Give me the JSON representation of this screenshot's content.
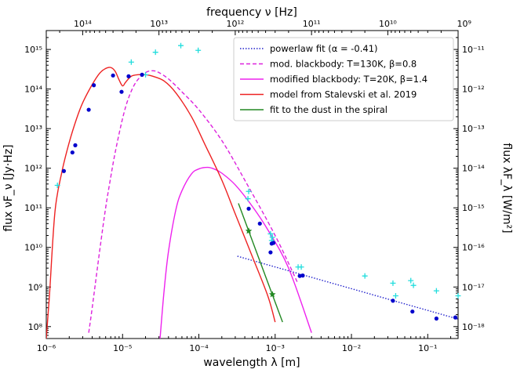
{
  "chart_data": {
    "type": "line",
    "title": "",
    "x_scale": "log",
    "y_scale": "log",
    "xlim": [
      1e-06,
      0.25
    ],
    "ylim": [
      50000000.0,
      3000000000000000.0
    ],
    "grid": false,
    "legend_position": "top-right",
    "bottom_axis": {
      "label": "wavelength λ [m]",
      "ticks": [
        {
          "value": 1e-06,
          "label": "10⁻⁶"
        },
        {
          "value": 1e-05,
          "label": "10⁻⁵"
        },
        {
          "value": 0.0001,
          "label": "10⁻⁴"
        },
        {
          "value": 0.001,
          "label": "10⁻³"
        },
        {
          "value": 0.01,
          "label": "10⁻²"
        },
        {
          "value": 0.1,
          "label": "10⁻¹"
        }
      ]
    },
    "top_axis": {
      "label": "frequency ν [Hz]",
      "ticks": [
        {
          "value": 100000000000000.0,
          "label": "10¹⁴"
        },
        {
          "value": 10000000000000.0,
          "label": "10¹³"
        },
        {
          "value": 1000000000000.0,
          "label": "10¹²"
        },
        {
          "value": 100000000000.0,
          "label": "10¹¹"
        },
        {
          "value": 10000000000.0,
          "label": "10¹⁰"
        },
        {
          "value": 1000000000.0,
          "label": "10⁹"
        }
      ]
    },
    "left_axis": {
      "label": "flux νF_ν [Jy·Hz]",
      "ticks": [
        {
          "value": 100000000.0,
          "label": "10⁸"
        },
        {
          "value": 1000000000.0,
          "label": "10⁹"
        },
        {
          "value": 10000000000.0,
          "label": "10¹⁰"
        },
        {
          "value": 100000000000.0,
          "label": "10¹¹"
        },
        {
          "value": 1000000000000.0,
          "label": "10¹²"
        },
        {
          "value": 10000000000000.0,
          "label": "10¹³"
        },
        {
          "value": 100000000000000.0,
          "label": "10¹⁴"
        },
        {
          "value": 1000000000000000.0,
          "label": "10¹⁵"
        }
      ]
    },
    "right_axis": {
      "label": "flux λF_λ [W/m²]",
      "ticks": [
        {
          "value": 1e-18,
          "label": "10⁻¹⁸"
        },
        {
          "value": 1e-17,
          "label": "10⁻¹⁷"
        },
        {
          "value": 1e-16,
          "label": "10⁻¹⁶"
        },
        {
          "value": 1e-15,
          "label": "10⁻¹⁵"
        },
        {
          "value": 1e-14,
          "label": "10⁻¹⁴"
        },
        {
          "value": 1e-13,
          "label": "10⁻¹³"
        },
        {
          "value": 1e-12,
          "label": "10⁻¹²"
        },
        {
          "value": 1e-11,
          "label": "10⁻¹¹"
        }
      ]
    },
    "series": [
      {
        "name": "powerlaw fit (α = -0.41)",
        "style": "dotted",
        "color": "#2222cc",
        "x": [
          0.00032,
          0.25
        ],
        "y": [
          6000000000.0,
          155000000.0
        ]
      },
      {
        "name": "mod. blackbody: T=130K, β=0.8",
        "style": "dashed",
        "color": "#dd22dd",
        "x": [
          3.6e-06,
          4e-06,
          5e-06,
          6e-06,
          7e-06,
          8e-06,
          1e-05,
          1.2e-05,
          1.5e-05,
          2e-05,
          2.5e-05,
          3e-05,
          4e-05,
          6e-05,
          0.0001,
          0.0002,
          0.0004,
          0.001,
          0.002
        ],
        "y": [
          70000000.0,
          300000000.0,
          8000000000.0,
          100000000000.0,
          600000000000.0,
          2500000000000.0,
          18000000000000.0,
          60000000000000.0,
          150000000000000.0,
          260000000000000.0,
          290000000000000.0,
          260000000000000.0,
          180000000000000.0,
          85000000000000.0,
          30000000000000.0,
          5000000000000.0,
          500000000000.0,
          20000000000.0,
          1200000000.0
        ]
      },
      {
        "name": "modified blackbody: T=20K, β=1.4",
        "style": "solid",
        "color": "#ee22ee",
        "x": [
          3.1e-05,
          3.5e-05,
          4e-05,
          5e-05,
          6e-05,
          8e-05,
          0.0001,
          0.00013,
          0.00016,
          0.0002,
          0.0003,
          0.0005,
          0.0008,
          0.0015,
          0.003
        ],
        "y": [
          50000000.0,
          800000000.0,
          8000000000.0,
          90000000000.0,
          270000000000.0,
          720000000000.0,
          960000000000.0,
          1050000000000.0,
          950000000000.0,
          750000000000.0,
          380000000000.0,
          110000000000.0,
          28000000000.0,
          3000000000.0,
          70000000.0
        ]
      },
      {
        "name": "model from Stalevski et al. 2019",
        "style": "solid",
        "color": "#ee2222",
        "x": [
          1e-06,
          1.1e-06,
          1.3e-06,
          1.6e-06,
          2e-06,
          2.5e-06,
          3e-06,
          4e-06,
          5e-06,
          6e-06,
          7e-06,
          8e-06,
          9e-06,
          1e-05,
          1.1e-05,
          1.3e-05,
          1.6e-05,
          2e-05,
          2.5e-05,
          3.5e-05,
          5e-05,
          8e-05,
          0.00012,
          0.0002,
          0.0003,
          0.0005,
          0.0008,
          0.001
        ],
        "y": [
          50000000.0,
          600000000.0,
          80000000000.0,
          800000000000.0,
          4500000000000.0,
          18000000000000.0,
          45000000000000.0,
          130000000000000.0,
          250000000000000.0,
          330000000000000.0,
          350000000000000.0,
          280000000000000.0,
          170000000000000.0,
          120000000000000.0,
          150000000000000.0,
          210000000000000.0,
          230000000000000.0,
          230000000000000.0,
          210000000000000.0,
          160000000000000.0,
          80000000000000.0,
          20000000000000.0,
          4000000000000.0,
          500000000000.0,
          70000000000.0,
          6000000000.0,
          600000000.0,
          130000000.0
        ]
      },
      {
        "name": "fit to the dust in the spiral",
        "style": "solid",
        "color": "#228822",
        "x": [
          0.00033,
          0.00125
        ],
        "y": [
          130000000000.0,
          130000000.0
        ]
      }
    ],
    "observed_points": {
      "color": "#0000cc",
      "x": [
        1.7e-06,
        2.2e-06,
        2.4e-06,
        3.6e-06,
        4.2e-06,
        7.5e-06,
        9.7e-06,
        1.2e-05,
        1.8e-05,
        0.00045,
        0.00063,
        0.00087,
        0.0009,
        0.00095,
        0.0021,
        0.0023,
        0.035,
        0.063,
        0.13,
        0.23
      ],
      "y": [
        850000000000.0,
        2500000000000.0,
        3800000000000.0,
        30000000000000.0,
        125000000000000.0,
        220000000000000.0,
        85000000000000.0,
        210000000000000.0,
        230000000000000.0,
        95000000000.0,
        40000000000.0,
        7500000000.0,
        12500000000.0,
        13000000000.0,
        1900000000.0,
        1950000000.0,
        450000000.0,
        240000000.0,
        160000000.0,
        170000000.0
      ]
    },
    "upper_points": {
      "color": "#22dddd",
      "x": [
        1.4e-06,
        1.3e-05,
        2e-05,
        2.7e-05,
        5.8e-05,
        9.8e-05,
        0.00045,
        0.00044,
        0.00087,
        0.0009,
        0.00092,
        0.002,
        0.0022,
        0.015,
        0.035,
        0.038,
        0.06,
        0.065,
        0.13,
        0.25
      ],
      "y": [
        370000000000.0,
        480000000000000.0,
        230000000000000.0,
        850000000000000.0,
        1250000000000000.0,
        950000000000000.0,
        260000000000.0,
        170000000000.0,
        22000000000.0,
        15000000000.0,
        18000000000.0,
        3200000000.0,
        3200000000.0,
        1900000000.0,
        1250000000.0,
        600000000.0,
        1450000000.0,
        1100000000.0,
        800000000.0,
        600000000.0
      ]
    },
    "stars": {
      "color": "#228822",
      "x": [
        0.00045,
        0.00092
      ],
      "y": [
        26000000000.0,
        650000000.0
      ]
    }
  }
}
